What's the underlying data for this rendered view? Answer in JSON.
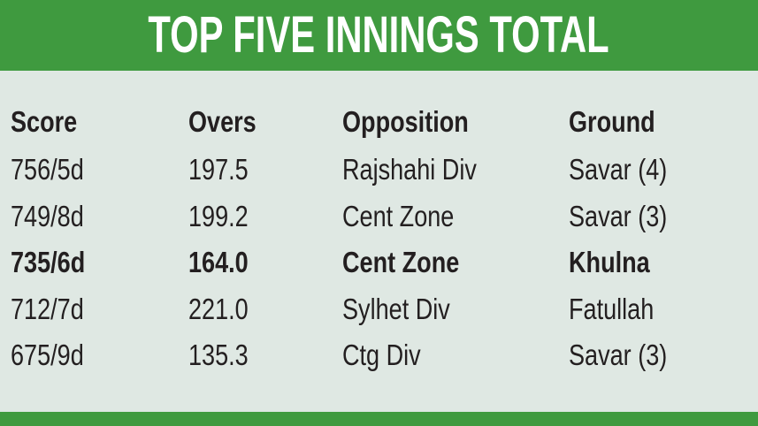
{
  "header": {
    "title": "TOP FIVE INNINGS TOTAL"
  },
  "table": {
    "columns": [
      "Score",
      "Overs",
      "Opposition",
      "Ground"
    ],
    "rows": [
      [
        "756/5d",
        "197.5",
        "Rajshahi Div",
        "Savar (4)"
      ],
      [
        "749/8d",
        "199.2",
        "Cent Zone",
        "Savar (3)"
      ],
      [
        "735/6d",
        "164.0",
        "Cent Zone",
        "Khulna"
      ],
      [
        "712/7d",
        "221.0",
        "Sylhet Div",
        "Fatullah"
      ],
      [
        "675/9d",
        "135.3",
        "Ctg Div",
        "Savar (3)"
      ]
    ]
  }
}
